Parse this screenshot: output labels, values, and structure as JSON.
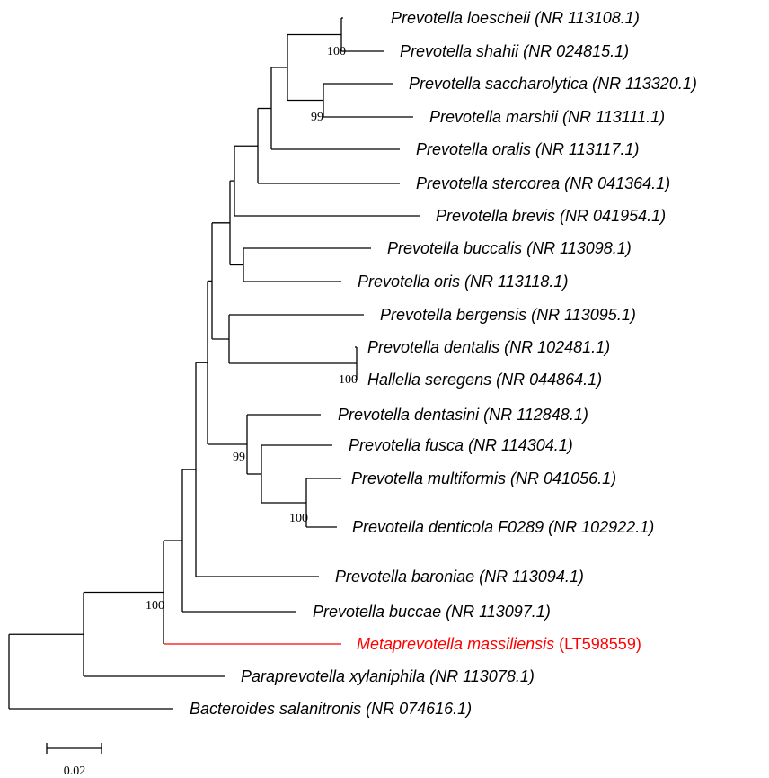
{
  "tree": {
    "highlight_color": "#ff0000",
    "taxa": [
      {
        "id": "t1",
        "name": "Prevotella loescheii (NR 113108.1)"
      },
      {
        "id": "t2",
        "name": "Prevotella shahii (NR 024815.1)"
      },
      {
        "id": "t3",
        "name": "Prevotella saccharolytica (NR 113320.1)"
      },
      {
        "id": "t4",
        "name": "Prevotella marshii (NR 113111.1)"
      },
      {
        "id": "t5",
        "name": "Prevotella oralis (NR 113117.1)"
      },
      {
        "id": "t6",
        "name": "Prevotella stercorea (NR 041364.1)"
      },
      {
        "id": "t7",
        "name": "Prevotella brevis (NR 041954.1)"
      },
      {
        "id": "t8",
        "name": "Prevotella buccalis (NR 113098.1)"
      },
      {
        "id": "t9",
        "name": "Prevotella oris (NR 113118.1)"
      },
      {
        "id": "t10",
        "name": "Prevotella bergensis (NR 113095.1)"
      },
      {
        "id": "t11",
        "name": "Prevotella dentalis (NR 102481.1)"
      },
      {
        "id": "t12",
        "name": "Hallella seregens (NR 044864.1)"
      },
      {
        "id": "t13",
        "name": "Prevotella dentasini (NR 112848.1)"
      },
      {
        "id": "t14",
        "name": "Prevotella fusca (NR 114304.1)"
      },
      {
        "id": "t15",
        "name": "Prevotella multiformis (NR 041056.1)"
      },
      {
        "id": "t16",
        "name": "Prevotella denticola F0289 (NR 102922.1)"
      },
      {
        "id": "t17",
        "name": "Prevotella baroniae (NR 113094.1)"
      },
      {
        "id": "t18",
        "name": "Prevotella buccae (NR 113097.1)"
      },
      {
        "id": "t19",
        "name": "Metaprevotella massiliensis",
        "accession": "(LT598559)",
        "highlight": true
      },
      {
        "id": "t20",
        "name": "Paraprevotella xylaniphila (NR 113078.1)"
      },
      {
        "id": "t21",
        "name": "Bacteroides salanitronis (NR 074616.1)"
      }
    ],
    "bootstrap": [
      {
        "node": "t1+t2",
        "value": "100"
      },
      {
        "node": "t3+t4",
        "value": "99"
      },
      {
        "node": "t11+t12",
        "value": "100"
      },
      {
        "node": "t13-t16",
        "value": "99"
      },
      {
        "node": "t15+t16",
        "value": "100"
      },
      {
        "node": "ingroup",
        "value": "100"
      }
    ],
    "scale_bar": {
      "value": 0.02,
      "label": "0.02"
    }
  }
}
